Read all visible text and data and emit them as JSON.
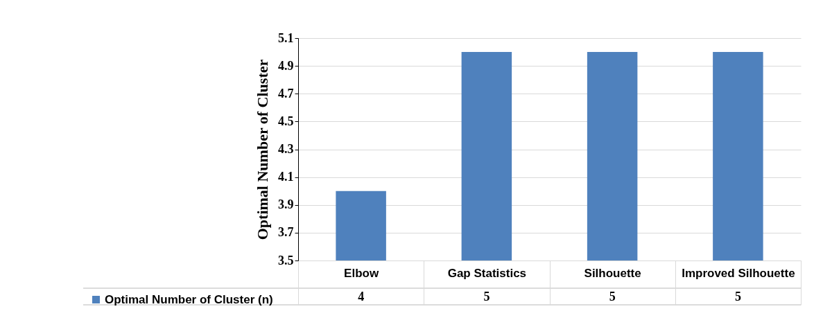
{
  "chart_data": {
    "type": "bar",
    "ylabel": "Optimal Number of Cluster",
    "categories": [
      "Elbow",
      "Gap Statistics",
      "Silhouette",
      "Improved Silhouette"
    ],
    "series": [
      {
        "name": "Optimal Number of Cluster (n)",
        "color": "#4f81bd",
        "values": [
          4,
          5,
          5,
          5
        ]
      }
    ],
    "ylim": [
      3.5,
      5.1
    ],
    "yticks": [
      3.5,
      3.7,
      3.9,
      4.1,
      4.3,
      4.5,
      4.7,
      4.9,
      5.1
    ],
    "grid": "y",
    "legend": "bottom left",
    "data_labels": true
  }
}
